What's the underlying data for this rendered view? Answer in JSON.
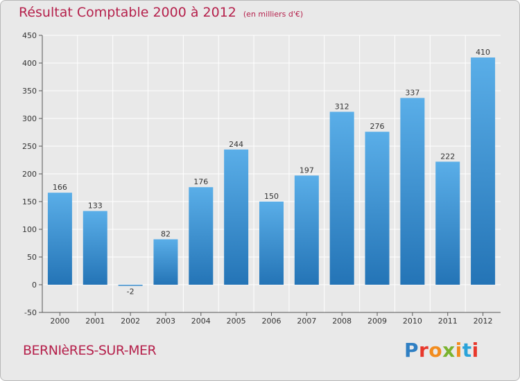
{
  "header": {
    "title": "Résultat Comptable 2000 à 2012",
    "unit": "(en milliers d'€)"
  },
  "footer": {
    "commune": "BERNIèRES-SUR-MER",
    "logo_letters": [
      "P",
      "r",
      "o",
      "x",
      "i",
      "t",
      "i"
    ],
    "logo_colors": [
      "#2f7fc3",
      "#e8382c",
      "#f28c1e",
      "#7ab32e",
      "#f28c1e",
      "#2aa3d9",
      "#e8382c"
    ]
  },
  "colors": {
    "bar_top": "#5aaee8",
    "bar_bottom": "#2474b6",
    "title": "#b5204b",
    "grid": "#ffffff"
  },
  "chart_data": {
    "type": "bar",
    "title": "Résultat Comptable 2000 à 2012",
    "xlabel": "",
    "ylabel": "",
    "categories": [
      "2000",
      "2001",
      "2002",
      "2003",
      "2004",
      "2005",
      "2006",
      "2007",
      "2008",
      "2009",
      "2010",
      "2011",
      "2012"
    ],
    "values": [
      166,
      133,
      -2,
      82,
      176,
      244,
      150,
      197,
      312,
      276,
      337,
      222,
      410
    ],
    "labels": [
      "166",
      "133",
      "-2",
      "82",
      "176",
      "244",
      "150",
      "197",
      "312",
      "276",
      "337",
      "222",
      "410"
    ],
    "ylim": [
      -50,
      450
    ],
    "yticks": [
      -50,
      0,
      50,
      100,
      150,
      200,
      250,
      300,
      350,
      400,
      450
    ],
    "grid": true,
    "legend": "none"
  }
}
